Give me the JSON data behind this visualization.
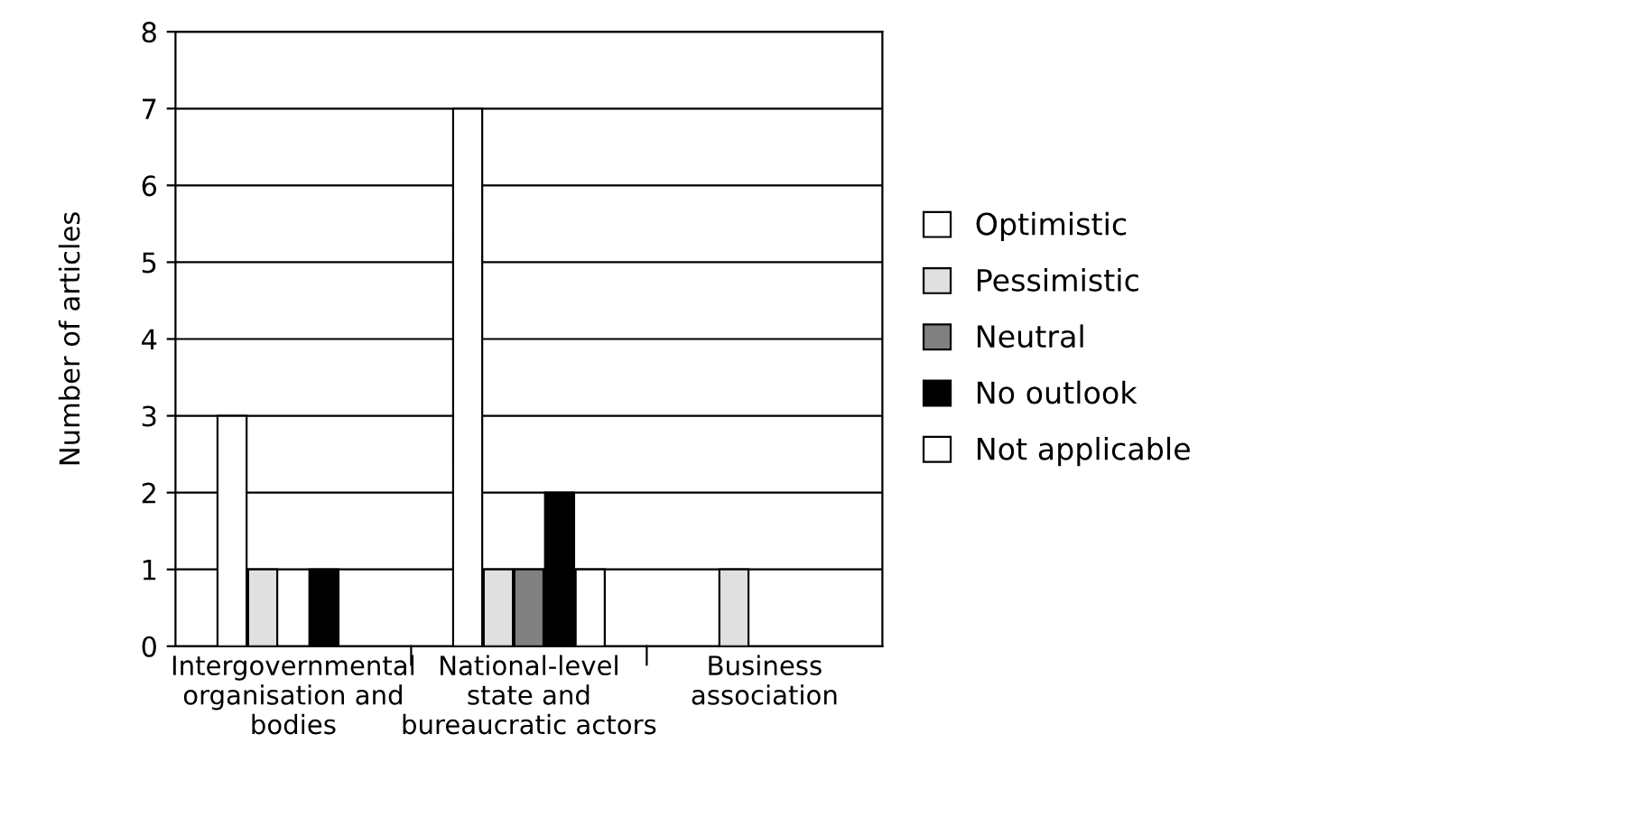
{
  "chart_data": {
    "type": "bar",
    "ylabel": "Number of articles",
    "categories": [
      "Intergovernmental\norganisation and\nbodies",
      "National-level\nstate and\nbureaucratic actors",
      "Business\nassociation"
    ],
    "series": [
      {
        "name": "Optimistic",
        "color": "#ffffff",
        "values": [
          3,
          7,
          null
        ]
      },
      {
        "name": "Pessimistic",
        "color": "#e0e0e0",
        "values": [
          1,
          1,
          1
        ]
      },
      {
        "name": "Neutral",
        "color": "#808080",
        "values": [
          null,
          1,
          null
        ]
      },
      {
        "name": "No outlook",
        "color": "#000000",
        "values": [
          1,
          2,
          null
        ]
      },
      {
        "name": "Not applicable",
        "color": "#ffffff",
        "values": [
          null,
          1,
          null
        ]
      }
    ],
    "ylim": [
      0,
      8
    ],
    "yticks": [
      0,
      1,
      2,
      3,
      4,
      5,
      6,
      7,
      8
    ],
    "grid": "y",
    "legend": "right"
  }
}
